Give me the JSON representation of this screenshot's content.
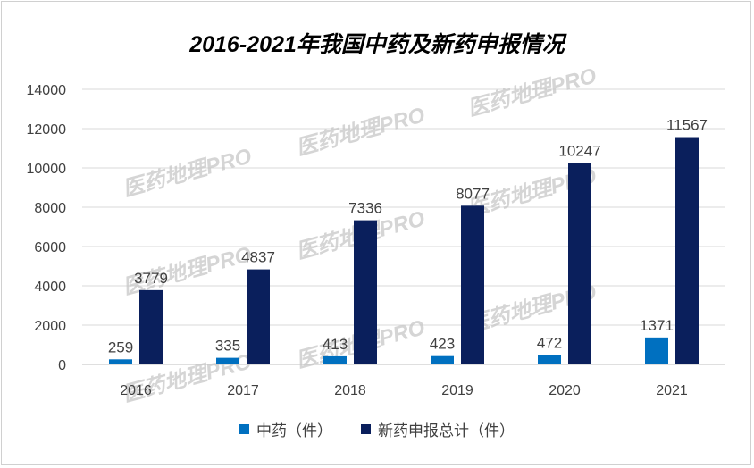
{
  "chart_data": {
    "type": "bar",
    "title": "2016-2021年我国中药及新药申报情况",
    "categories": [
      "2016",
      "2017",
      "2018",
      "2019",
      "2020",
      "2021"
    ],
    "series": [
      {
        "name": "中药（件）",
        "color": "#0070c0",
        "values": [
          259,
          335,
          413,
          423,
          472,
          1371
        ]
      },
      {
        "name": "新药申报总计（件）",
        "color": "#0a1f5c",
        "values": [
          3779,
          4837,
          7336,
          8077,
          10247,
          11567
        ]
      }
    ],
    "ylim": [
      0,
      14000
    ],
    "yticks": [
      0,
      2000,
      4000,
      6000,
      8000,
      10000,
      12000,
      14000
    ],
    "grid": true,
    "legend": "bottom",
    "watermark": "医药地理PRO"
  }
}
